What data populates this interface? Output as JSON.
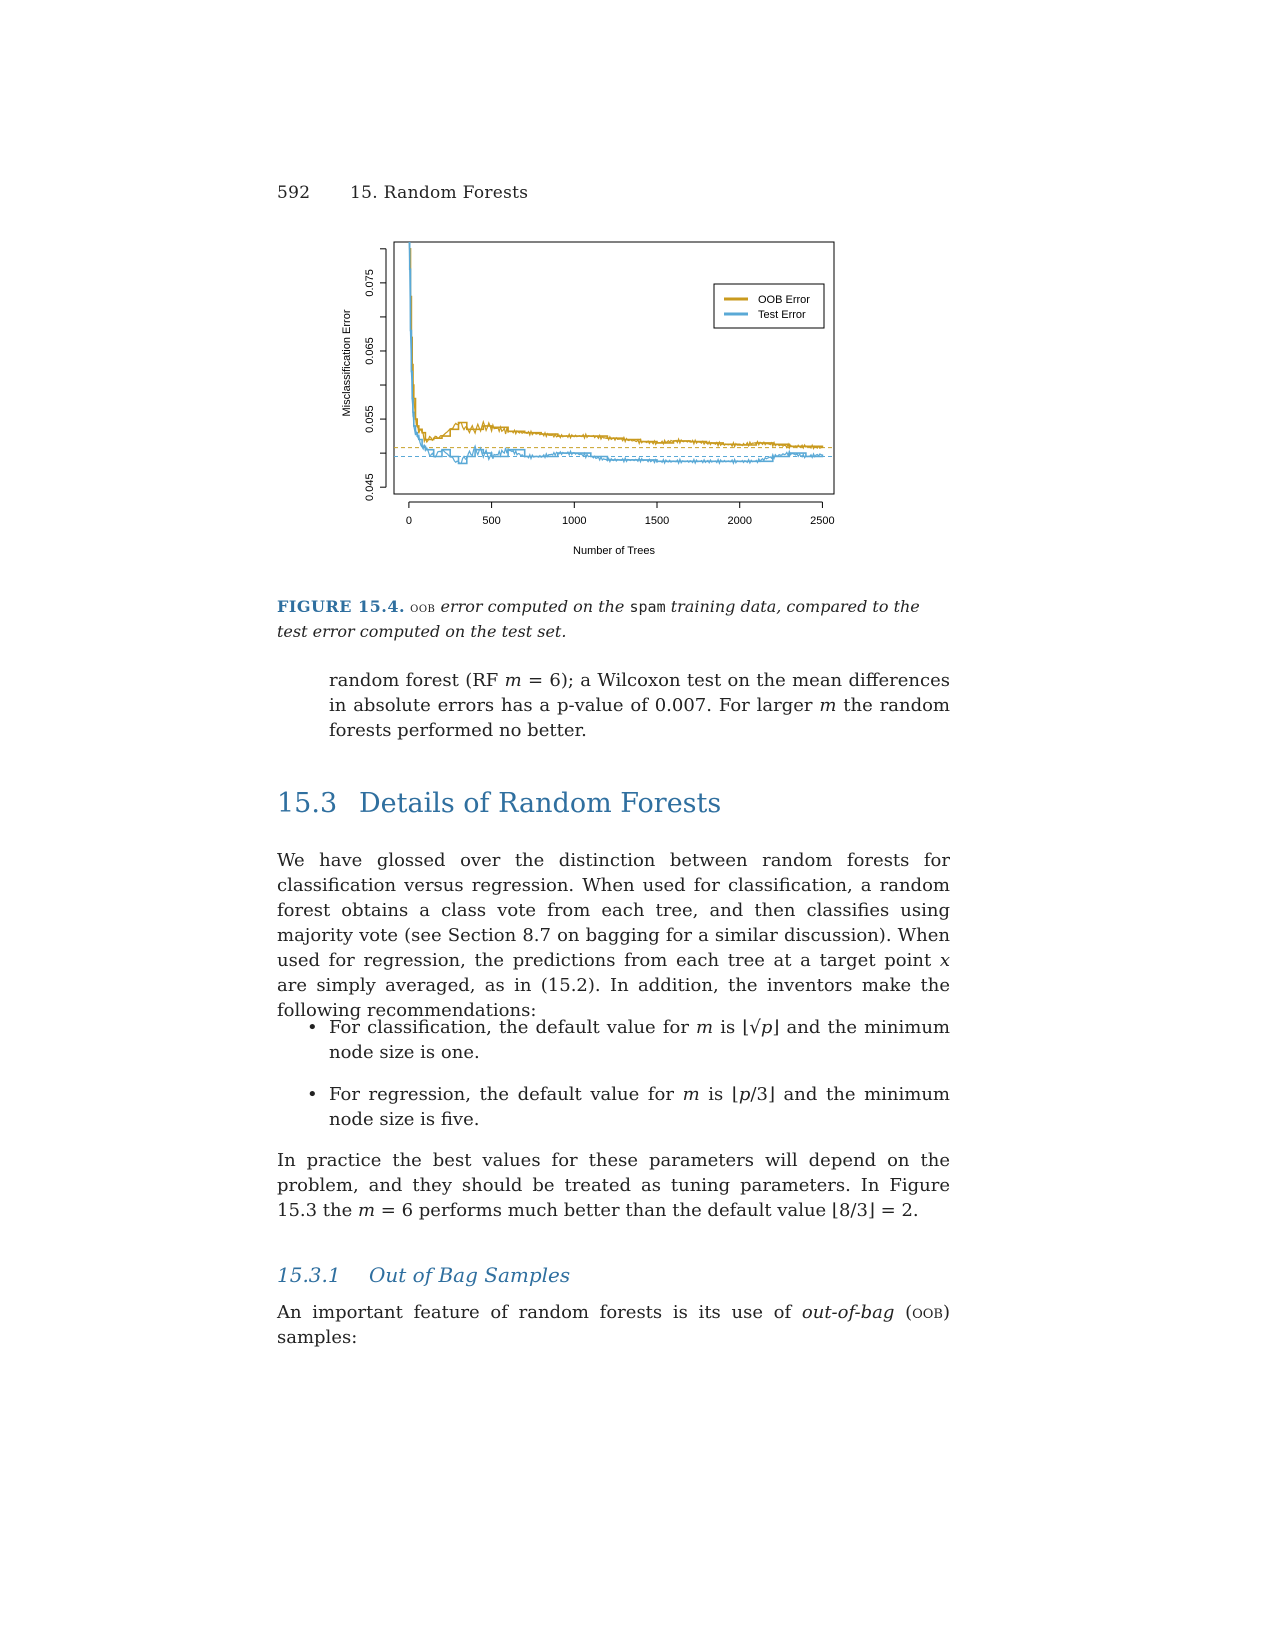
{
  "header": {
    "page_number": "592",
    "running_title": "15.  Random Forests"
  },
  "chart_data": {
    "type": "line",
    "xlabel": "Number of Trees",
    "ylabel": "Misclassification Error",
    "xlim": [
      -90,
      2570
    ],
    "ylim": [
      0.044,
      0.081
    ],
    "x_ticks": [
      0,
      500,
      1000,
      1500,
      2000,
      2500
    ],
    "x_tick_labels": [
      "0",
      "500",
      "1000",
      "1500",
      "2000",
      "2500"
    ],
    "y_ticks": [
      0.045,
      0.05,
      0.055,
      0.06,
      0.065,
      0.07,
      0.075,
      0.08
    ],
    "y_tick_labels": [
      "0.045",
      "",
      "0.055",
      "",
      "0.065",
      "",
      "0.075",
      ""
    ],
    "legend_position": "top-right",
    "reference_lines": [
      {
        "y": 0.0508,
        "color": "#c8a028",
        "style": "dashed"
      },
      {
        "y": 0.0495,
        "color": "#5aa9d6",
        "style": "dashed"
      }
    ],
    "series": [
      {
        "name": "OOB Error",
        "color": "#c99a1e",
        "x": [
          1,
          5,
          10,
          15,
          20,
          25,
          30,
          40,
          50,
          60,
          80,
          100,
          150,
          200,
          250,
          300,
          350,
          400,
          450,
          500,
          600,
          700,
          800,
          900,
          1000,
          1100,
          1200,
          1300,
          1400,
          1500,
          1600,
          1700,
          1800,
          1900,
          2000,
          2100,
          2200,
          2300,
          2400,
          2500
        ],
        "y": [
          0.082,
          0.08,
          0.073,
          0.067,
          0.063,
          0.06,
          0.058,
          0.055,
          0.054,
          0.0535,
          0.053,
          0.052,
          0.0522,
          0.0525,
          0.0535,
          0.0545,
          0.0535,
          0.0535,
          0.054,
          0.0538,
          0.0532,
          0.053,
          0.0528,
          0.0525,
          0.0525,
          0.0525,
          0.0522,
          0.052,
          0.0517,
          0.0515,
          0.0518,
          0.0517,
          0.0515,
          0.0513,
          0.0512,
          0.0515,
          0.0513,
          0.051,
          0.051,
          0.0508
        ]
      },
      {
        "name": "Test Error",
        "color": "#5aa9d6",
        "x": [
          1,
          5,
          10,
          15,
          20,
          25,
          30,
          40,
          50,
          60,
          80,
          100,
          150,
          200,
          250,
          300,
          350,
          400,
          450,
          500,
          600,
          700,
          800,
          900,
          1000,
          1100,
          1200,
          1300,
          1400,
          1500,
          1600,
          1700,
          1800,
          1900,
          2000,
          2100,
          2200,
          2300,
          2400,
          2500
        ],
        "y": [
          0.082,
          0.077,
          0.068,
          0.062,
          0.058,
          0.056,
          0.054,
          0.053,
          0.0525,
          0.052,
          0.051,
          0.0505,
          0.0495,
          0.0505,
          0.0495,
          0.0485,
          0.0495,
          0.0505,
          0.05,
          0.0495,
          0.0505,
          0.0495,
          0.0495,
          0.05,
          0.05,
          0.0495,
          0.049,
          0.049,
          0.049,
          0.0488,
          0.0488,
          0.0488,
          0.0488,
          0.0488,
          0.0488,
          0.0488,
          0.0495,
          0.05,
          0.0495,
          0.0498
        ]
      }
    ]
  },
  "caption": {
    "label": "FIGURE 15.4.",
    "sc_oob": "oob",
    "t1": "error computed on the",
    "code": "spam",
    "t2": "training data, compared to the test error computed on the test set."
  },
  "para1": {
    "a": "random forest (RF ",
    "m": "m",
    "b": " = 6); a Wilcoxon test on the mean differences in absolute errors has a p-value of 0.007. For larger ",
    "m2": "m",
    "c": " the random forests performed no better."
  },
  "section": {
    "number": "15.3",
    "title": "Details of Random Forests"
  },
  "para2": {
    "a": "We have glossed over the distinction between random forests for classification versus regression. When used for classification, a random forest obtains a class vote from each tree, and then classifies using majority vote (see Section 8.7 on bagging for a similar discussion). When used for regression, the predictions from each tree at a target point ",
    "x": "x",
    "b": " are simply averaged, as in (15.2). In addition, the inventors make the following recommendations:"
  },
  "bullets": [
    {
      "dot": "•",
      "a": "For classification, the default value for ",
      "m": "m",
      "b": " is ⌊√",
      "p": "p",
      "c": "⌋ and the minimum node size is one."
    },
    {
      "dot": "•",
      "a": "For regression, the default value for ",
      "m": "m",
      "b": " is ⌊",
      "p": "p",
      "c": "/3⌋ and the minimum node size is five."
    }
  ],
  "para3": {
    "a": "In practice the best values for these parameters will depend on the problem, and they should be treated as tuning parameters. In Figure 15.3 the ",
    "m": "m",
    "b": " = 6 performs much better than the default value ⌊8/3⌋ = 2."
  },
  "subsection": {
    "number": "15.3.1",
    "title": "Out of Bag Samples"
  },
  "para4": {
    "a": "An important feature of random forests is its use of ",
    "em": "out-of-bag",
    "b": " (",
    "sc": "oob",
    "c": ") samples:"
  }
}
